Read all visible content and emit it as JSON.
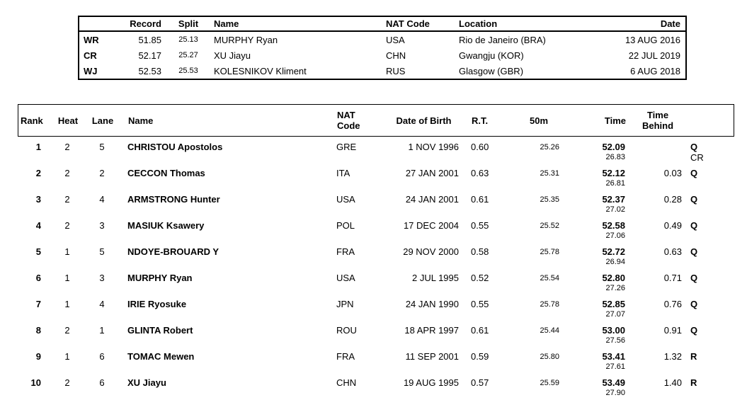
{
  "colors": {
    "text": "#000000",
    "background": "#ffffff",
    "border": "#000000"
  },
  "records_table": {
    "headers": {
      "tag": "",
      "record": "Record",
      "split": "Split",
      "name": "Name",
      "nat_code": "NAT Code",
      "location": "Location",
      "date": "Date"
    },
    "rows": [
      {
        "tag": "WR",
        "record": "51.85",
        "split": "25.13",
        "name": "MURPHY Ryan",
        "nat_code": "USA",
        "location": "Rio de Janeiro (BRA)",
        "date": "13 AUG 2016"
      },
      {
        "tag": "CR",
        "record": "52.17",
        "split": "25.27",
        "name": "XU Jiayu",
        "nat_code": "CHN",
        "location": "Gwangju (KOR)",
        "date": "22 JUL 2019"
      },
      {
        "tag": "WJ",
        "record": "52.53",
        "split": "25.53",
        "name": "KOLESNIKOV Kliment",
        "nat_code": "RUS",
        "location": "Glasgow (GBR)",
        "date": "6 AUG 2018"
      }
    ]
  },
  "results_table": {
    "headers": {
      "rank": "Rank",
      "heat": "Heat",
      "lane": "Lane",
      "name": "Name",
      "nat_code": "NAT\nCode",
      "date_of_birth": "Date of Birth",
      "reaction_time": "R.T.",
      "split_50m": "50m",
      "time": "Time",
      "time_behind": "Time\nBehind",
      "qualification": ""
    },
    "rows": [
      {
        "rank": "1",
        "heat": "2",
        "lane": "5",
        "name": "CHRISTOU Apostolos",
        "nat_code": "GRE",
        "date_of_birth": "1 NOV 1996",
        "reaction_time": "0.60",
        "split_50m": "25.26",
        "time": "52.09",
        "second_split": "26.83",
        "time_behind": "",
        "qualification": "Q",
        "note": "CR"
      },
      {
        "rank": "2",
        "heat": "2",
        "lane": "2",
        "name": "CECCON Thomas",
        "nat_code": "ITA",
        "date_of_birth": "27 JAN 2001",
        "reaction_time": "0.63",
        "split_50m": "25.31",
        "time": "52.12",
        "second_split": "26.81",
        "time_behind": "0.03",
        "qualification": "Q",
        "note": ""
      },
      {
        "rank": "3",
        "heat": "2",
        "lane": "4",
        "name": "ARMSTRONG Hunter",
        "nat_code": "USA",
        "date_of_birth": "24 JAN 2001",
        "reaction_time": "0.61",
        "split_50m": "25.35",
        "time": "52.37",
        "second_split": "27.02",
        "time_behind": "0.28",
        "qualification": "Q",
        "note": ""
      },
      {
        "rank": "4",
        "heat": "2",
        "lane": "3",
        "name": "MASIUK Ksawery",
        "nat_code": "POL",
        "date_of_birth": "17 DEC 2004",
        "reaction_time": "0.55",
        "split_50m": "25.52",
        "time": "52.58",
        "second_split": "27.06",
        "time_behind": "0.49",
        "qualification": "Q",
        "note": ""
      },
      {
        "rank": "5",
        "heat": "1",
        "lane": "5",
        "name": "NDOYE-BROUARD Y",
        "nat_code": "FRA",
        "date_of_birth": "29 NOV 2000",
        "reaction_time": "0.58",
        "split_50m": "25.78",
        "time": "52.72",
        "second_split": "26.94",
        "time_behind": "0.63",
        "qualification": "Q",
        "note": ""
      },
      {
        "rank": "6",
        "heat": "1",
        "lane": "3",
        "name": "MURPHY Ryan",
        "nat_code": "USA",
        "date_of_birth": "2 JUL 1995",
        "reaction_time": "0.52",
        "split_50m": "25.54",
        "time": "52.80",
        "second_split": "27.26",
        "time_behind": "0.71",
        "qualification": "Q",
        "note": ""
      },
      {
        "rank": "7",
        "heat": "1",
        "lane": "4",
        "name": "IRIE Ryosuke",
        "nat_code": "JPN",
        "date_of_birth": "24 JAN 1990",
        "reaction_time": "0.55",
        "split_50m": "25.78",
        "time": "52.85",
        "second_split": "27.07",
        "time_behind": "0.76",
        "qualification": "Q",
        "note": ""
      },
      {
        "rank": "8",
        "heat": "2",
        "lane": "1",
        "name": "GLINTA Robert",
        "nat_code": "ROU",
        "date_of_birth": "18 APR 1997",
        "reaction_time": "0.61",
        "split_50m": "25.44",
        "time": "53.00",
        "second_split": "27.56",
        "time_behind": "0.91",
        "qualification": "Q",
        "note": ""
      },
      {
        "rank": "9",
        "heat": "1",
        "lane": "6",
        "name": "TOMAC Mewen",
        "nat_code": "FRA",
        "date_of_birth": "11 SEP 2001",
        "reaction_time": "0.59",
        "split_50m": "25.80",
        "time": "53.41",
        "second_split": "27.61",
        "time_behind": "1.32",
        "qualification": "R",
        "note": ""
      },
      {
        "rank": "10",
        "heat": "2",
        "lane": "6",
        "name": "XU Jiayu",
        "nat_code": "CHN",
        "date_of_birth": "19 AUG 1995",
        "reaction_time": "0.57",
        "split_50m": "25.59",
        "time": "53.49",
        "second_split": "27.90",
        "time_behind": "1.40",
        "qualification": "R",
        "note": ""
      }
    ]
  }
}
